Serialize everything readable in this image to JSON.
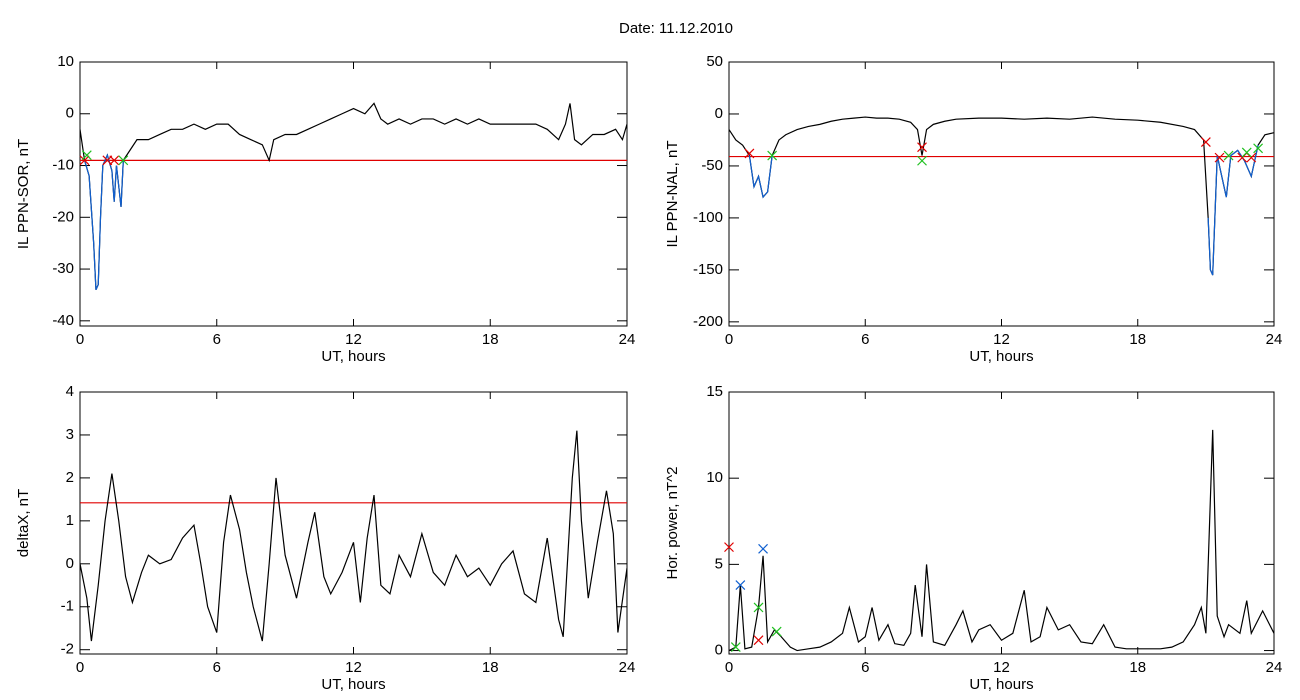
{
  "title": "Date:  11.12.2010",
  "chart_data": [
    {
      "type": "line",
      "xlabel": "UT, hours",
      "ylabel": "IL PPN-SOR, nT",
      "xlim": [
        0,
        24
      ],
      "xticks": [
        0,
        6,
        12,
        18,
        24
      ],
      "ylim": [
        -41,
        10
      ],
      "yticks": [
        -40,
        -30,
        -20,
        -10,
        0,
        10
      ],
      "threshold": {
        "value": -9,
        "color": "#e00000"
      },
      "series": [
        {
          "color": "#000000",
          "x": [
            0,
            0.2,
            0.4,
            0.6,
            0.7,
            0.8,
            0.9,
            1.0,
            1.2,
            1.4,
            1.5,
            1.6,
            1.8,
            1.9,
            2.2,
            2.5,
            3,
            3.5,
            4,
            4.5,
            5,
            5.5,
            6,
            6.5,
            7,
            7.5,
            8,
            8.3,
            8.5,
            9,
            9.5,
            10,
            10.5,
            11,
            11.5,
            12,
            12.5,
            12.9,
            13.2,
            13.5,
            14,
            14.5,
            15,
            15.5,
            16,
            16.5,
            17,
            17.5,
            18,
            18.5,
            19,
            19.5,
            20,
            20.5,
            21,
            21.3,
            21.5,
            21.7,
            22,
            22.5,
            23,
            23.5,
            23.8,
            24
          ],
          "values": [
            -3,
            -9,
            -12,
            -25,
            -34,
            -33,
            -20,
            -10,
            -8,
            -11,
            -17,
            -10,
            -18,
            -9,
            -7,
            -5,
            -5,
            -4,
            -3,
            -3,
            -2,
            -3,
            -2,
            -2,
            -4,
            -5,
            -6,
            -9,
            -5,
            -4,
            -4,
            -3,
            -2,
            -1,
            0,
            1,
            0,
            2,
            -1,
            -2,
            -1,
            -2,
            -1,
            -1,
            -2,
            -1,
            -2,
            -1,
            -2,
            -2,
            -2,
            -2,
            -2,
            -3,
            -5,
            -2,
            2,
            -5,
            -6,
            -4,
            -4,
            -3,
            -5,
            -2
          ]
        },
        {
          "color": "#1060d0",
          "x": [
            0.2,
            0.4,
            0.6,
            0.7,
            0.8,
            0.9,
            1.0,
            1.2,
            1.4,
            1.5,
            1.6,
            1.8,
            1.9
          ],
          "values": [
            -9,
            -12,
            -25,
            -34,
            -33,
            -20,
            -10,
            -8,
            -11,
            -17,
            -10,
            -18,
            -9
          ]
        },
        {
          "type": "scatter",
          "marker": "x",
          "color": "#e00000",
          "x": [
            0.2,
            1.2,
            1.5
          ],
          "values": [
            -9,
            -9,
            -9
          ]
        },
        {
          "type": "scatter",
          "marker": "x",
          "color": "#20c020",
          "x": [
            0.3,
            1.9
          ],
          "values": [
            -8,
            -9
          ]
        }
      ]
    },
    {
      "type": "line",
      "xlabel": "UT, hours",
      "ylabel": "IL PPN-NAL, nT",
      "xlim": [
        0,
        24
      ],
      "xticks": [
        0,
        6,
        12,
        18,
        24
      ],
      "ylim": [
        -204,
        50
      ],
      "yticks": [
        -200,
        -150,
        -100,
        -50,
        0,
        50
      ],
      "threshold": {
        "value": -41,
        "color": "#e00000"
      },
      "series": [
        {
          "color": "#000000",
          "x": [
            0,
            0.3,
            0.6,
            0.9,
            1.1,
            1.3,
            1.5,
            1.7,
            1.9,
            2.2,
            2.5,
            3,
            3.5,
            4,
            4.5,
            5,
            5.5,
            6,
            6.5,
            7,
            7.5,
            8,
            8.3,
            8.5,
            8.7,
            9,
            9.5,
            10,
            11,
            12,
            13,
            14,
            15,
            16,
            17,
            18,
            19,
            20,
            20.5,
            20.9,
            21.1,
            21.2,
            21.3,
            21.5,
            21.7,
            21.9,
            22.1,
            22.4,
            22.7,
            23,
            23.3,
            23.6,
            24
          ],
          "values": [
            -15,
            -25,
            -30,
            -40,
            -70,
            -60,
            -80,
            -75,
            -40,
            -25,
            -20,
            -15,
            -12,
            -10,
            -7,
            -5,
            -4,
            -3,
            -4,
            -4,
            -5,
            -8,
            -15,
            -40,
            -15,
            -10,
            -7,
            -5,
            -4,
            -4,
            -5,
            -4,
            -5,
            -3,
            -5,
            -6,
            -8,
            -12,
            -15,
            -25,
            -100,
            -150,
            -155,
            -40,
            -60,
            -80,
            -40,
            -35,
            -45,
            -60,
            -30,
            -20,
            -18
          ]
        },
        {
          "color": "#1060d0",
          "x": [
            0.9,
            1.1,
            1.3,
            1.5,
            1.7,
            1.9,
            21.0,
            21.1,
            21.2,
            21.3,
            21.5,
            21.7,
            21.9,
            22.1,
            22.4,
            22.7,
            23,
            23.3
          ],
          "values": [
            -40,
            -70,
            -60,
            -80,
            -75,
            -40,
            null,
            -100,
            -150,
            -155,
            -40,
            -60,
            -80,
            -40,
            -35,
            -45,
            -60,
            -30
          ]
        },
        {
          "type": "scatter",
          "marker": "x",
          "color": "#e00000",
          "x": [
            0.9,
            8.5,
            21,
            21.6,
            22.6,
            23
          ],
          "values": [
            -38,
            -32,
            -27,
            -42,
            -42,
            -42
          ]
        },
        {
          "type": "scatter",
          "marker": "x",
          "color": "#20c020",
          "x": [
            1.9,
            8.5,
            22,
            22.8,
            23.3
          ],
          "values": [
            -40,
            -45,
            -40,
            -37,
            -33
          ]
        }
      ]
    },
    {
      "type": "line",
      "xlabel": "UT, hours",
      "ylabel": "deltaX, nT",
      "xlim": [
        0,
        24
      ],
      "xticks": [
        0,
        6,
        12,
        18,
        24
      ],
      "ylim": [
        -2.1,
        4
      ],
      "yticks": [
        -2,
        -1,
        0,
        1,
        2,
        3,
        4
      ],
      "threshold": {
        "value": 1.42,
        "color": "#e00000"
      },
      "series": [
        {
          "color": "#000000",
          "x": [
            0,
            0.3,
            0.5,
            0.8,
            1.1,
            1.4,
            1.7,
            2,
            2.3,
            2.7,
            3,
            3.5,
            4,
            4.5,
            5,
            5.3,
            5.6,
            6,
            6.3,
            6.6,
            7,
            7.3,
            7.6,
            8,
            8.3,
            8.6,
            9,
            9.5,
            10,
            10.3,
            10.7,
            11,
            11.5,
            12,
            12.3,
            12.6,
            12.9,
            13.2,
            13.6,
            14,
            14.5,
            15,
            15.5,
            16,
            16.5,
            17,
            17.5,
            18,
            18.5,
            19,
            19.5,
            20,
            20.5,
            21,
            21.2,
            21.6,
            21.8,
            22,
            22.3,
            22.7,
            23.1,
            23.4,
            23.6,
            24
          ],
          "values": [
            0,
            -0.8,
            -1.8,
            -0.5,
            1.0,
            2.1,
            1.0,
            -0.3,
            -0.9,
            -0.2,
            0.2,
            0,
            0.1,
            0.6,
            0.9,
            0,
            -1.0,
            -1.6,
            0.5,
            1.6,
            0.8,
            -0.2,
            -1.0,
            -1.8,
            0,
            2.0,
            0.2,
            -0.8,
            0.5,
            1.2,
            -0.3,
            -0.7,
            -0.2,
            0.5,
            -0.9,
            0.6,
            1.6,
            -0.5,
            -0.7,
            0.2,
            -0.3,
            0.7,
            -0.2,
            -0.5,
            0.2,
            -0.3,
            -0.1,
            -0.5,
            0,
            0.3,
            -0.7,
            -0.9,
            0.6,
            -1.3,
            -1.7,
            2.0,
            3.1,
            1.0,
            -0.8,
            0.5,
            1.7,
            0.7,
            -1.6,
            -0.1
          ]
        }
      ]
    },
    {
      "type": "line",
      "xlabel": "UT, hours",
      "ylabel": "Hor. power, nT^2",
      "xlim": [
        0,
        24
      ],
      "xticks": [
        0,
        6,
        12,
        18,
        24
      ],
      "ylim": [
        -0.2,
        15
      ],
      "yticks": [
        0,
        5,
        10,
        15
      ],
      "series": [
        {
          "color": "#000000",
          "x": [
            0,
            0.3,
            0.5,
            0.7,
            1,
            1.3,
            1.5,
            1.7,
            2,
            2.3,
            2.7,
            3,
            3.5,
            4,
            4.5,
            5,
            5.3,
            5.7,
            6,
            6.3,
            6.6,
            7,
            7.3,
            7.7,
            8,
            8.2,
            8.5,
            8.7,
            9,
            9.5,
            10,
            10.3,
            10.7,
            11,
            11.5,
            12,
            12.5,
            13,
            13.3,
            13.7,
            14,
            14.5,
            15,
            15.5,
            16,
            16.5,
            17,
            17.5,
            18,
            18.5,
            19,
            19.5,
            20,
            20.5,
            20.8,
            21,
            21.3,
            21.5,
            21.8,
            22,
            22.5,
            22.8,
            23,
            23.5,
            24
          ],
          "values": [
            0,
            0.2,
            3.8,
            0.1,
            0.2,
            2.5,
            5.5,
            0.5,
            1.2,
            0.8,
            0.2,
            0,
            0.1,
            0.2,
            0.5,
            1.0,
            2.5,
            0.5,
            0.8,
            2.5,
            0.6,
            1.5,
            0.4,
            0.3,
            1,
            3.8,
            0.8,
            5.0,
            0.5,
            0.3,
            1.5,
            2.3,
            0.5,
            1.2,
            1.5,
            0.6,
            1.0,
            3.5,
            0.5,
            0.8,
            2.5,
            1.2,
            1.5,
            0.5,
            0.4,
            1.5,
            0.2,
            0.1,
            0.1,
            0.1,
            0.1,
            0.2,
            0.5,
            1.5,
            2.5,
            1.0,
            12.8,
            2.0,
            0.8,
            1.5,
            1.0,
            2.9,
            1.0,
            2.3,
            1.0
          ]
        },
        {
          "type": "scatter",
          "marker": "x",
          "color": "#e00000",
          "x": [
            0,
            1.3
          ],
          "values": [
            6,
            0.6
          ]
        },
        {
          "type": "scatter",
          "marker": "x",
          "color": "#1060d0",
          "x": [
            0.5,
            1.5
          ],
          "values": [
            3.8,
            5.9
          ]
        },
        {
          "type": "scatter",
          "marker": "x",
          "color": "#20c020",
          "x": [
            0.3,
            1.3,
            2.1
          ],
          "values": [
            0.2,
            2.5,
            1.1
          ]
        }
      ]
    }
  ]
}
